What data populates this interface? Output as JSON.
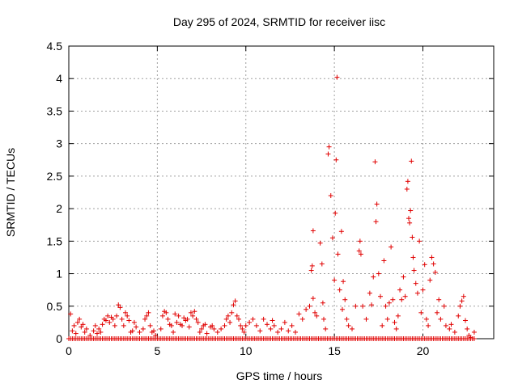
{
  "chart_data": {
    "type": "scatter",
    "title": "Day 295 of 2024, SRMTID for receiver iisc",
    "xlabel": "GPS time / hours",
    "ylabel": "SRMTID / TECUs",
    "xlim": [
      0,
      24
    ],
    "ylim": [
      0,
      4.5
    ],
    "x_ticks": [
      "0",
      "5",
      "10",
      "15",
      "20"
    ],
    "y_ticks": [
      "0",
      "0.5",
      "1",
      "1.5",
      "2",
      "2.5",
      "3",
      "3.5",
      "4",
      "4.5"
    ],
    "grid": true,
    "marker": "plus",
    "series": [
      {
        "name": "SRMTID",
        "color": "#e00000",
        "points": [
          [
            0.1,
            0.38
          ],
          [
            0.2,
            0.12
          ],
          [
            0.3,
            0.2
          ],
          [
            0.4,
            0.08
          ],
          [
            0.5,
            0.25
          ],
          [
            0.6,
            0.3
          ],
          [
            0.7,
            0.18
          ],
          [
            0.8,
            0.22
          ],
          [
            0.9,
            0.1
          ],
          [
            1.0,
            0.15
          ],
          [
            1.2,
            0.05
          ],
          [
            1.4,
            0.12
          ],
          [
            1.5,
            0.2
          ],
          [
            1.6,
            0.08
          ],
          [
            1.7,
            0.15
          ],
          [
            1.8,
            0.1
          ],
          [
            1.9,
            0.22
          ],
          [
            2.0,
            0.3
          ],
          [
            2.1,
            0.28
          ],
          [
            2.2,
            0.35
          ],
          [
            2.3,
            0.25
          ],
          [
            2.4,
            0.33
          ],
          [
            2.5,
            0.3
          ],
          [
            2.6,
            0.2
          ],
          [
            2.7,
            0.35
          ],
          [
            2.8,
            0.52
          ],
          [
            2.9,
            0.48
          ],
          [
            3.0,
            0.3
          ],
          [
            3.1,
            0.2
          ],
          [
            3.2,
            0.4
          ],
          [
            3.3,
            0.35
          ],
          [
            3.4,
            0.28
          ],
          [
            3.5,
            0.1
          ],
          [
            3.6,
            0.12
          ],
          [
            3.7,
            0.25
          ],
          [
            3.8,
            0.18
          ],
          [
            4.0,
            0.1
          ],
          [
            4.2,
            0.15
          ],
          [
            4.3,
            0.3
          ],
          [
            4.4,
            0.35
          ],
          [
            4.5,
            0.4
          ],
          [
            4.6,
            0.2
          ],
          [
            4.7,
            0.1
          ],
          [
            4.8,
            0.12
          ],
          [
            4.9,
            0.05
          ],
          [
            5.2,
            0.15
          ],
          [
            5.3,
            0.35
          ],
          [
            5.4,
            0.42
          ],
          [
            5.5,
            0.4
          ],
          [
            5.6,
            0.3
          ],
          [
            5.7,
            0.22
          ],
          [
            5.8,
            0.2
          ],
          [
            5.9,
            0.1
          ],
          [
            6.0,
            0.38
          ],
          [
            6.1,
            0.25
          ],
          [
            6.2,
            0.35
          ],
          [
            6.3,
            0.22
          ],
          [
            6.4,
            0.2
          ],
          [
            6.5,
            0.32
          ],
          [
            6.6,
            0.28
          ],
          [
            6.7,
            0.3
          ],
          [
            6.8,
            0.18
          ],
          [
            6.9,
            0.4
          ],
          [
            7.0,
            0.35
          ],
          [
            7.1,
            0.42
          ],
          [
            7.2,
            0.3
          ],
          [
            7.3,
            0.25
          ],
          [
            7.4,
            0.1
          ],
          [
            7.5,
            0.15
          ],
          [
            7.6,
            0.2
          ],
          [
            7.7,
            0.22
          ],
          [
            7.8,
            0.08
          ],
          [
            8.0,
            0.18
          ],
          [
            8.1,
            0.2
          ],
          [
            8.2,
            0.15
          ],
          [
            8.4,
            0.1
          ],
          [
            8.6,
            0.15
          ],
          [
            8.8,
            0.2
          ],
          [
            8.9,
            0.3
          ],
          [
            9.0,
            0.35
          ],
          [
            9.1,
            0.25
          ],
          [
            9.2,
            0.4
          ],
          [
            9.3,
            0.52
          ],
          [
            9.4,
            0.58
          ],
          [
            9.5,
            0.35
          ],
          [
            9.6,
            0.3
          ],
          [
            9.7,
            0.2
          ],
          [
            9.8,
            0.15
          ],
          [
            9.9,
            0.1
          ],
          [
            10.0,
            0.2
          ],
          [
            10.2,
            0.25
          ],
          [
            10.4,
            0.3
          ],
          [
            10.6,
            0.2
          ],
          [
            10.8,
            0.12
          ],
          [
            11.0,
            0.3
          ],
          [
            11.2,
            0.22
          ],
          [
            11.4,
            0.15
          ],
          [
            11.5,
            0.28
          ],
          [
            11.6,
            0.2
          ],
          [
            11.8,
            0.1
          ],
          [
            12.0,
            0.15
          ],
          [
            12.2,
            0.25
          ],
          [
            12.4,
            0.12
          ],
          [
            12.6,
            0.2
          ],
          [
            12.8,
            0.1
          ],
          [
            13.0,
            0.38
          ],
          [
            13.2,
            0.3
          ],
          [
            13.4,
            0.45
          ],
          [
            13.6,
            0.5
          ],
          [
            13.7,
            1.05
          ],
          [
            13.75,
            1.12
          ],
          [
            13.8,
            1.66
          ],
          [
            13.8,
            0.62
          ],
          [
            13.9,
            0.4
          ],
          [
            14.0,
            0.35
          ],
          [
            14.2,
            1.47
          ],
          [
            14.3,
            1.15
          ],
          [
            14.35,
            0.55
          ],
          [
            14.4,
            0.3
          ],
          [
            14.5,
            0.15
          ],
          [
            14.65,
            2.84
          ],
          [
            14.7,
            2.95
          ],
          [
            14.8,
            2.2
          ],
          [
            14.9,
            1.55
          ],
          [
            15.0,
            0.9
          ],
          [
            15.05,
            1.93
          ],
          [
            15.1,
            2.75
          ],
          [
            15.15,
            4.02
          ],
          [
            15.2,
            1.3
          ],
          [
            15.3,
            0.75
          ],
          [
            15.4,
            1.65
          ],
          [
            15.45,
            0.45
          ],
          [
            15.5,
            0.88
          ],
          [
            15.6,
            0.6
          ],
          [
            15.7,
            0.3
          ],
          [
            15.8,
            0.2
          ],
          [
            16.0,
            0.15
          ],
          [
            16.2,
            0.5
          ],
          [
            16.4,
            1.35
          ],
          [
            16.45,
            1.5
          ],
          [
            16.5,
            1.3
          ],
          [
            16.6,
            0.5
          ],
          [
            16.8,
            0.3
          ],
          [
            17.0,
            0.7
          ],
          [
            17.1,
            0.52
          ],
          [
            17.2,
            0.95
          ],
          [
            17.3,
            2.72
          ],
          [
            17.35,
            1.8
          ],
          [
            17.4,
            2.07
          ],
          [
            17.5,
            1.0
          ],
          [
            17.6,
            0.65
          ],
          [
            17.7,
            0.2
          ],
          [
            17.8,
            1.2
          ],
          [
            17.9,
            0.5
          ],
          [
            18.0,
            0.3
          ],
          [
            18.1,
            0.55
          ],
          [
            18.2,
            1.41
          ],
          [
            18.3,
            0.6
          ],
          [
            18.4,
            0.25
          ],
          [
            18.5,
            0.15
          ],
          [
            18.6,
            0.35
          ],
          [
            18.7,
            0.75
          ],
          [
            18.8,
            0.6
          ],
          [
            18.9,
            0.95
          ],
          [
            19.0,
            0.65
          ],
          [
            19.1,
            2.3
          ],
          [
            19.15,
            2.42
          ],
          [
            19.2,
            1.85
          ],
          [
            19.25,
            1.78
          ],
          [
            19.3,
            1.97
          ],
          [
            19.35,
            2.73
          ],
          [
            19.4,
            1.56
          ],
          [
            19.45,
            1.25
          ],
          [
            19.5,
            1.05
          ],
          [
            19.6,
            0.85
          ],
          [
            19.7,
            0.7
          ],
          [
            19.8,
            1.5
          ],
          [
            19.9,
            0.4
          ],
          [
            20.0,
            0.75
          ],
          [
            20.1,
            1.14
          ],
          [
            20.2,
            0.3
          ],
          [
            20.3,
            0.2
          ],
          [
            20.4,
            0.9
          ],
          [
            20.5,
            1.25
          ],
          [
            20.6,
            1.15
          ],
          [
            20.7,
            1.02
          ],
          [
            20.8,
            0.4
          ],
          [
            20.9,
            0.6
          ],
          [
            21.0,
            0.3
          ],
          [
            21.2,
            0.5
          ],
          [
            21.3,
            0.2
          ],
          [
            21.5,
            0.15
          ],
          [
            21.6,
            0.22
          ],
          [
            21.8,
            0.1
          ],
          [
            22.0,
            0.35
          ],
          [
            22.1,
            0.5
          ],
          [
            22.2,
            0.58
          ],
          [
            22.3,
            0.65
          ],
          [
            22.4,
            0.28
          ],
          [
            22.5,
            0.15
          ],
          [
            22.6,
            0.05
          ],
          [
            22.7,
            0.02
          ],
          [
            22.9,
            0.1
          ]
        ],
        "baseline_points": {
          "value": 0,
          "x_start": 0,
          "x_end": 22.9,
          "x_step": 0.1
        }
      }
    ]
  }
}
